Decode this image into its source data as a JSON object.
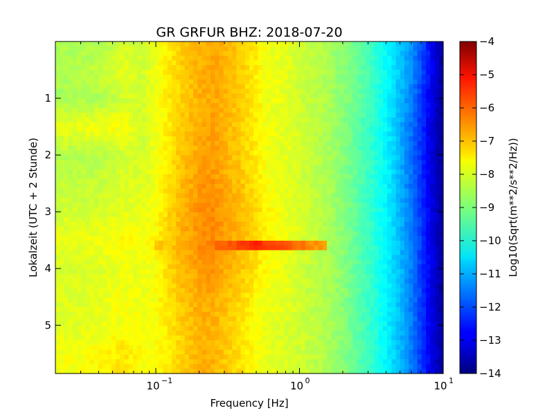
{
  "chart_data": {
    "type": "heatmap",
    "title": "GR GRFUR BHZ: 2018-07-20",
    "xlabel": "Frequency [Hz]",
    "ylabel": "Lokalzeit (UTC + 2 Stunde)",
    "colorbar_label": "Log10(Sqrt(m**2/s**2/Hz))",
    "x_scale": "log",
    "xlim": [
      0.02,
      10
    ],
    "ylim": [
      5.85,
      0
    ],
    "x_ticks": [
      {
        "value": 0.1,
        "base": "10",
        "exp": "−1"
      },
      {
        "value": 1,
        "base": "10",
        "exp": "0"
      },
      {
        "value": 10,
        "base": "10",
        "exp": "1"
      }
    ],
    "y_ticks": [
      {
        "value": 1,
        "label": "1"
      },
      {
        "value": 2,
        "label": "2"
      },
      {
        "value": 3,
        "label": "3"
      },
      {
        "value": 4,
        "label": "4"
      },
      {
        "value": 5,
        "label": "5"
      }
    ],
    "colorbar": {
      "colormap": "jet",
      "vmin": -14,
      "vmax": -4,
      "ticks": [
        {
          "value": -4,
          "label": "−4"
        },
        {
          "value": -5,
          "label": "−5"
        },
        {
          "value": -6,
          "label": "−6"
        },
        {
          "value": -7,
          "label": "−7"
        },
        {
          "value": -8,
          "label": "−8"
        },
        {
          "value": -9,
          "label": "−9"
        },
        {
          "value": -10,
          "label": "−10"
        },
        {
          "value": -11,
          "label": "−11"
        },
        {
          "value": -12,
          "label": "−12"
        },
        {
          "value": -13,
          "label": "−13"
        },
        {
          "value": -14,
          "label": "−14"
        }
      ]
    },
    "frequency_bins_hz": [
      0.02,
      0.04,
      0.06,
      0.08,
      0.1,
      0.12,
      0.15,
      0.2,
      0.25,
      0.3,
      0.4,
      0.5,
      0.6,
      0.8,
      1.0,
      1.3,
      1.6,
      2.0,
      2.5,
      3.2,
      4.0,
      5.0,
      6.3,
      8.0,
      10.0
    ],
    "time_hours": [
      0.0,
      0.5,
      1.0,
      1.5,
      2.0,
      2.5,
      3.0,
      3.5,
      4.0,
      4.5,
      5.0,
      5.5
    ],
    "values": [
      [
        -8.6,
        -8.6,
        -8.2,
        -8.2,
        -7.9,
        -7.6,
        -7.3,
        -7.0,
        -6.9,
        -7.0,
        -7.3,
        -7.6,
        -7.9,
        -8.0,
        -8.2,
        -8.4,
        -8.6,
        -8.9,
        -9.2,
        -9.7,
        -10.2,
        -10.8,
        -11.5,
        -12.6,
        -13.8
      ],
      [
        -8.6,
        -8.3,
        -8.0,
        -8.2,
        -7.9,
        -7.6,
        -7.3,
        -7.0,
        -6.9,
        -7.0,
        -7.3,
        -7.6,
        -7.9,
        -8.0,
        -8.2,
        -8.4,
        -8.6,
        -8.9,
        -9.2,
        -9.7,
        -10.2,
        -10.8,
        -11.5,
        -12.6,
        -13.8
      ],
      [
        -8.6,
        -8.6,
        -8.2,
        -8.2,
        -7.9,
        -7.6,
        -7.3,
        -7.0,
        -6.9,
        -7.0,
        -7.3,
        -7.6,
        -7.9,
        -8.0,
        -8.2,
        -8.4,
        -8.6,
        -8.9,
        -9.2,
        -9.7,
        -10.2,
        -10.9,
        -11.7,
        -12.8,
        -13.8
      ],
      [
        -8.0,
        -7.8,
        -7.8,
        -8.2,
        -7.9,
        -7.6,
        -7.2,
        -7.0,
        -6.8,
        -7.0,
        -7.3,
        -7.6,
        -7.9,
        -8.0,
        -8.2,
        -8.4,
        -8.6,
        -8.9,
        -9.3,
        -9.8,
        -10.3,
        -11.0,
        -11.8,
        -12.9,
        -13.8
      ],
      [
        -8.5,
        -8.5,
        -8.2,
        -8.2,
        -7.9,
        -7.6,
        -7.2,
        -6.9,
        -6.8,
        -7.0,
        -7.3,
        -7.6,
        -7.9,
        -8.0,
        -8.2,
        -8.4,
        -8.6,
        -8.9,
        -9.3,
        -9.8,
        -10.3,
        -11.0,
        -11.8,
        -12.9,
        -13.8
      ],
      [
        -8.4,
        -8.3,
        -8.1,
        -8.1,
        -7.9,
        -7.5,
        -7.1,
        -6.8,
        -6.7,
        -6.9,
        -7.2,
        -7.5,
        -7.8,
        -8.0,
        -8.2,
        -8.4,
        -8.6,
        -8.9,
        -9.3,
        -9.8,
        -10.3,
        -11.0,
        -11.8,
        -12.9,
        -13.8
      ],
      [
        -8.2,
        -8.2,
        -8.0,
        -8.0,
        -7.8,
        -7.4,
        -7.0,
        -6.7,
        -6.6,
        -6.8,
        -7.1,
        -7.4,
        -7.7,
        -7.9,
        -8.1,
        -8.3,
        -8.6,
        -8.9,
        -9.3,
        -9.8,
        -10.3,
        -11.0,
        -11.7,
        -12.8,
        -13.8
      ],
      [
        -8.0,
        -7.9,
        -7.7,
        -7.8,
        -7.7,
        -7.3,
        -7.0,
        -6.7,
        -6.6,
        -6.8,
        -7.1,
        -7.4,
        -7.7,
        -7.9,
        -8.1,
        -8.3,
        -8.6,
        -8.9,
        -9.3,
        -9.8,
        -10.3,
        -10.9,
        -11.7,
        -12.8,
        -13.8
      ],
      [
        -8.2,
        -8.1,
        -7.9,
        -8.0,
        -7.8,
        -7.4,
        -7.1,
        -6.8,
        -6.7,
        -6.9,
        -7.2,
        -7.5,
        -7.8,
        -8.0,
        -8.2,
        -8.4,
        -8.6,
        -8.9,
        -9.3,
        -9.8,
        -10.3,
        -10.9,
        -11.7,
        -12.8,
        -13.8
      ],
      [
        -8.1,
        -8.0,
        -7.8,
        -7.9,
        -7.8,
        -7.5,
        -7.2,
        -6.9,
        -6.9,
        -7.1,
        -7.4,
        -7.7,
        -7.9,
        -8.0,
        -8.2,
        -8.4,
        -8.6,
        -8.9,
        -9.3,
        -9.8,
        -10.3,
        -10.9,
        -11.7,
        -12.8,
        -13.8
      ],
      [
        -8.1,
        -8.0,
        -7.8,
        -7.9,
        -7.8,
        -7.6,
        -7.3,
        -7.0,
        -7.0,
        -7.2,
        -7.5,
        -7.8,
        -8.0,
        -8.1,
        -8.2,
        -8.4,
        -8.6,
        -8.9,
        -9.3,
        -9.8,
        -10.3,
        -10.9,
        -11.7,
        -12.8,
        -13.8
      ],
      [
        -7.9,
        -7.7,
        -7.5,
        -7.8,
        -7.8,
        -7.6,
        -7.3,
        -7.0,
        -7.0,
        -7.2,
        -7.5,
        -7.8,
        -8.0,
        -8.1,
        -8.2,
        -8.4,
        -8.6,
        -8.9,
        -9.3,
        -9.8,
        -10.3,
        -10.9,
        -11.7,
        -12.8,
        -13.8
      ]
    ],
    "event": {
      "time_hours": 3.6,
      "freq_range_hz": [
        0.1,
        1.6
      ],
      "peak_hz": 0.5,
      "peak_value": -5.6
    }
  }
}
